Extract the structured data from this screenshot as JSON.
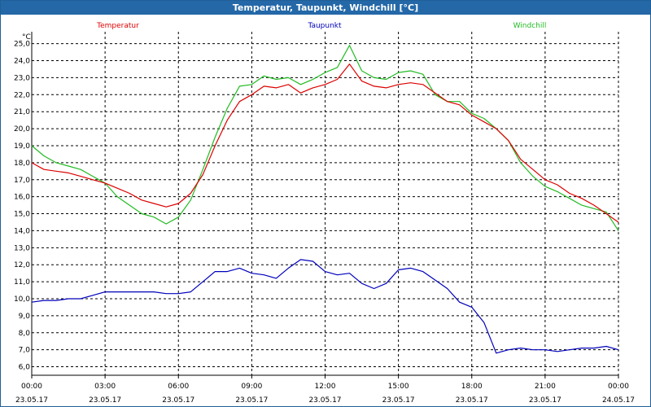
{
  "window": {
    "title": "Temperatur, Taupunkt, Windchill [°C]"
  },
  "colors": {
    "temperatur": "#dd0000",
    "taupunkt": "#0000bb",
    "windchill": "#22bb22",
    "grid": "#000000"
  },
  "chart_data": {
    "type": "line",
    "title": "Temperatur, Taupunkt, Windchill [°C]",
    "ylabel": "°C",
    "ylim": [
      5.5,
      25.7
    ],
    "y_ticks": [
      "6.0",
      "7.0",
      "8.0",
      "9.0",
      "10.0",
      "11.0",
      "12.0",
      "13.0",
      "14.0",
      "15.0",
      "16.0",
      "17.0",
      "18.0",
      "19.0",
      "20.0",
      "21.0",
      "22.0",
      "23.0",
      "24.0",
      "25.0"
    ],
    "y_ticks_display": [
      "6,0",
      "7,0",
      "8,0",
      "9,0",
      "10,0",
      "11,0",
      "12,0",
      "13,0",
      "14,0",
      "15,0",
      "16,0",
      "17,0",
      "18,0",
      "19,0",
      "20,0",
      "21,0",
      "22,0",
      "23,0",
      "24,0",
      "25,0"
    ],
    "x_ticks": [
      {
        "time": "00:00",
        "date": "23.05.17"
      },
      {
        "time": "03:00",
        "date": "23.05.17"
      },
      {
        "time": "06:00",
        "date": "23.05.17"
      },
      {
        "time": "09:00",
        "date": "23.05.17"
      },
      {
        "time": "12:00",
        "date": "23.05.17"
      },
      {
        "time": "15:00",
        "date": "23.05.17"
      },
      {
        "time": "18:00",
        "date": "23.05.17"
      },
      {
        "time": "21:00",
        "date": "23.05.17"
      },
      {
        "time": "00:00",
        "date": "24.05.17"
      }
    ],
    "grid": true,
    "legend": "top",
    "series": [
      {
        "name": "Temperatur",
        "color": "#dd0000",
        "points": [
          [
            "23.05.17 00:00",
            18.0
          ],
          [
            "23.05.17 00:30",
            17.6
          ],
          [
            "23.05.17 01:00",
            17.5
          ],
          [
            "23.05.17 01:30",
            17.4
          ],
          [
            "23.05.17 02:00",
            17.2
          ],
          [
            "23.05.17 02:30",
            17.0
          ],
          [
            "23.05.17 03:00",
            16.8
          ],
          [
            "23.05.17 03:30",
            16.5
          ],
          [
            "23.05.17 04:00",
            16.2
          ],
          [
            "23.05.17 04:30",
            15.8
          ],
          [
            "23.05.17 05:00",
            15.6
          ],
          [
            "23.05.17 05:30",
            15.4
          ],
          [
            "23.05.17 06:00",
            15.6
          ],
          [
            "23.05.17 06:30",
            16.2
          ],
          [
            "23.05.17 07:00",
            17.3
          ],
          [
            "23.05.17 07:30",
            19.0
          ],
          [
            "23.05.17 08:00",
            20.5
          ],
          [
            "23.05.17 08:30",
            21.6
          ],
          [
            "23.05.17 09:00",
            22.0
          ],
          [
            "23.05.17 09:30",
            22.5
          ],
          [
            "23.05.17 10:00",
            22.4
          ],
          [
            "23.05.17 10:30",
            22.6
          ],
          [
            "23.05.17 11:00",
            22.1
          ],
          [
            "23.05.17 11:30",
            22.4
          ],
          [
            "23.05.17 12:00",
            22.6
          ],
          [
            "23.05.17 12:30",
            22.9
          ],
          [
            "23.05.17 13:00",
            23.8
          ],
          [
            "23.05.17 13:30",
            22.8
          ],
          [
            "23.05.17 14:00",
            22.5
          ],
          [
            "23.05.17 14:30",
            22.4
          ],
          [
            "23.05.17 15:00",
            22.6
          ],
          [
            "23.05.17 15:30",
            22.7
          ],
          [
            "23.05.17 16:00",
            22.6
          ],
          [
            "23.05.17 16:30",
            22.1
          ],
          [
            "23.05.17 17:00",
            21.6
          ],
          [
            "23.05.17 17:30",
            21.4
          ],
          [
            "23.05.17 18:00",
            20.8
          ],
          [
            "23.05.17 18:30",
            20.4
          ],
          [
            "23.05.17 19:00",
            20.0
          ],
          [
            "23.05.17 19:30",
            19.3
          ],
          [
            "23.05.17 20:00",
            18.2
          ],
          [
            "23.05.17 20:30",
            17.6
          ],
          [
            "23.05.17 21:00",
            17.0
          ],
          [
            "23.05.17 21:30",
            16.7
          ],
          [
            "23.05.17 22:00",
            16.2
          ],
          [
            "23.05.17 22:30",
            15.9
          ],
          [
            "23.05.17 23:00",
            15.5
          ],
          [
            "23.05.17 23:30",
            15.0
          ],
          [
            "24.05.17 00:00",
            14.5
          ]
        ]
      },
      {
        "name": "Taupunkt",
        "color": "#0000bb",
        "points": [
          [
            "23.05.17 00:00",
            9.8
          ],
          [
            "23.05.17 00:30",
            9.9
          ],
          [
            "23.05.17 01:00",
            9.9
          ],
          [
            "23.05.17 01:30",
            10.0
          ],
          [
            "23.05.17 02:00",
            10.0
          ],
          [
            "23.05.17 02:30",
            10.2
          ],
          [
            "23.05.17 03:00",
            10.4
          ],
          [
            "23.05.17 03:30",
            10.4
          ],
          [
            "23.05.17 04:00",
            10.4
          ],
          [
            "23.05.17 04:30",
            10.4
          ],
          [
            "23.05.17 05:00",
            10.4
          ],
          [
            "23.05.17 05:30",
            10.3
          ],
          [
            "23.05.17 06:00",
            10.3
          ],
          [
            "23.05.17 06:30",
            10.4
          ],
          [
            "23.05.17 07:00",
            11.0
          ],
          [
            "23.05.17 07:30",
            11.6
          ],
          [
            "23.05.17 08:00",
            11.6
          ],
          [
            "23.05.17 08:30",
            11.8
          ],
          [
            "23.05.17 09:00",
            11.5
          ],
          [
            "23.05.17 09:30",
            11.4
          ],
          [
            "23.05.17 10:00",
            11.2
          ],
          [
            "23.05.17 10:30",
            11.8
          ],
          [
            "23.05.17 11:00",
            12.3
          ],
          [
            "23.05.17 11:30",
            12.2
          ],
          [
            "23.05.17 12:00",
            11.6
          ],
          [
            "23.05.17 12:30",
            11.4
          ],
          [
            "23.05.17 13:00",
            11.5
          ],
          [
            "23.05.17 13:30",
            10.9
          ],
          [
            "23.05.17 14:00",
            10.6
          ],
          [
            "23.05.17 14:30",
            10.9
          ],
          [
            "23.05.17 15:00",
            11.7
          ],
          [
            "23.05.17 15:30",
            11.8
          ],
          [
            "23.05.17 16:00",
            11.6
          ],
          [
            "23.05.17 16:30",
            11.1
          ],
          [
            "23.05.17 17:00",
            10.6
          ],
          [
            "23.05.17 17:30",
            9.8
          ],
          [
            "23.05.17 18:00",
            9.5
          ],
          [
            "23.05.17 18:30",
            8.6
          ],
          [
            "23.05.17 19:00",
            6.8
          ],
          [
            "23.05.17 19:30",
            7.0
          ],
          [
            "23.05.17 20:00",
            7.1
          ],
          [
            "23.05.17 20:30",
            7.0
          ],
          [
            "23.05.17 21:00",
            7.0
          ],
          [
            "23.05.17 21:30",
            6.9
          ],
          [
            "23.05.17 22:00",
            7.0
          ],
          [
            "23.05.17 22:30",
            7.1
          ],
          [
            "23.05.17 23:00",
            7.1
          ],
          [
            "23.05.17 23:30",
            7.2
          ],
          [
            "24.05.17 00:00",
            7.0
          ]
        ]
      },
      {
        "name": "Windchill",
        "color": "#22bb22",
        "points": [
          [
            "23.05.17 00:00",
            19.0
          ],
          [
            "23.05.17 00:30",
            18.4
          ],
          [
            "23.05.17 01:00",
            18.0
          ],
          [
            "23.05.17 01:30",
            17.8
          ],
          [
            "23.05.17 02:00",
            17.6
          ],
          [
            "23.05.17 02:30",
            17.2
          ],
          [
            "23.05.17 03:00",
            16.8
          ],
          [
            "23.05.17 03:30",
            16.0
          ],
          [
            "23.05.17 04:00",
            15.5
          ],
          [
            "23.05.17 04:30",
            15.0
          ],
          [
            "23.05.17 05:00",
            14.8
          ],
          [
            "23.05.17 05:30",
            14.4
          ],
          [
            "23.05.17 06:00",
            14.8
          ],
          [
            "23.05.17 06:30",
            15.8
          ],
          [
            "23.05.17 07:00",
            17.6
          ],
          [
            "23.05.17 07:30",
            19.5
          ],
          [
            "23.05.17 08:00",
            21.2
          ],
          [
            "23.05.17 08:30",
            22.5
          ],
          [
            "23.05.17 09:00",
            22.6
          ],
          [
            "23.05.17 09:30",
            23.1
          ],
          [
            "23.05.17 10:00",
            22.9
          ],
          [
            "23.05.17 10:30",
            23.0
          ],
          [
            "23.05.17 11:00",
            22.6
          ],
          [
            "23.05.17 11:30",
            22.9
          ],
          [
            "23.05.17 12:00",
            23.3
          ],
          [
            "23.05.17 12:30",
            23.6
          ],
          [
            "23.05.17 13:00",
            24.9
          ],
          [
            "23.05.17 13:30",
            23.4
          ],
          [
            "23.05.17 14:00",
            23.0
          ],
          [
            "23.05.17 14:30",
            22.9
          ],
          [
            "23.05.17 15:00",
            23.3
          ],
          [
            "23.05.17 15:30",
            23.4
          ],
          [
            "23.05.17 16:00",
            23.2
          ],
          [
            "23.05.17 16:30",
            22.0
          ],
          [
            "23.05.17 17:00",
            21.6
          ],
          [
            "23.05.17 17:30",
            21.6
          ],
          [
            "23.05.17 18:00",
            20.9
          ],
          [
            "23.05.17 18:30",
            20.6
          ],
          [
            "23.05.17 19:00",
            20.0
          ],
          [
            "23.05.17 19:30",
            19.3
          ],
          [
            "23.05.17 20:00",
            18.0
          ],
          [
            "23.05.17 20:30",
            17.2
          ],
          [
            "23.05.17 21:00",
            16.6
          ],
          [
            "23.05.17 21:30",
            16.3
          ],
          [
            "23.05.17 22:00",
            15.9
          ],
          [
            "23.05.17 22:30",
            15.5
          ],
          [
            "23.05.17 23:00",
            15.3
          ],
          [
            "23.05.17 23:30",
            15.1
          ],
          [
            "24.05.17 00:00",
            14.0
          ]
        ]
      }
    ]
  }
}
